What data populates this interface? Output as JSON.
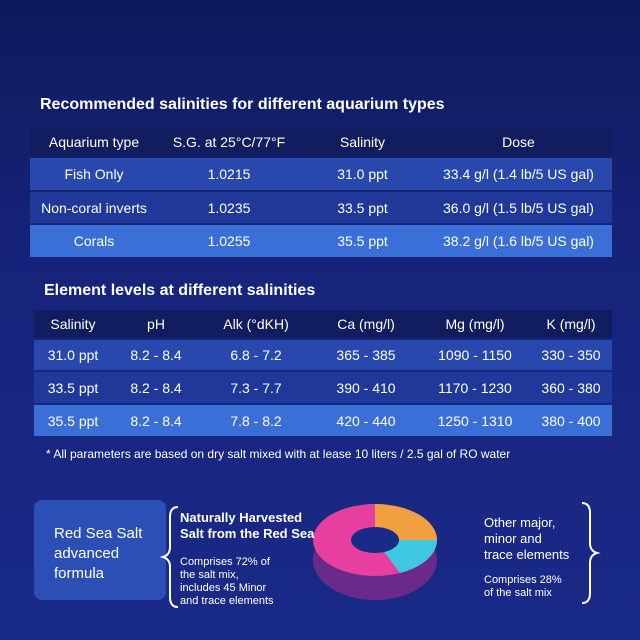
{
  "table1": {
    "title": "Recommended salinities for different aquarium types",
    "header": [
      "Aquarium type",
      "S.G. at 25°C/77°F",
      "Salinity",
      "Dose"
    ],
    "rows": [
      [
        "Fish Only",
        "1.0215",
        "31.0 ppt",
        "33.4 g/l (1.4 lb/5 US gal)"
      ],
      [
        "Non-coral inverts",
        "1.0235",
        "33.5 ppt",
        "36.0 g/l (1.5 lb/5 US gal)"
      ],
      [
        "Corals",
        "1.0255",
        "35.5 ppt",
        "38.2 g/l (1.6 lb/5 US gal)"
      ]
    ]
  },
  "table2": {
    "title": "Element levels at different salinities",
    "header": [
      "Salinity",
      "pH",
      "Alk (°dKH)",
      "Ca (mg/l)",
      "Mg (mg/l)",
      "K (mg/l)"
    ],
    "rows": [
      [
        "31.0 ppt",
        "8.2 - 8.4",
        "6.8 - 7.2",
        "365 - 385",
        "1090 - 1150",
        "330 - 350"
      ],
      [
        "33.5 ppt",
        "8.2 - 8.4",
        "7.3 - 7.7",
        "390 - 410",
        "1170 - 1230",
        "360 - 380"
      ],
      [
        "35.5 ppt",
        "8.2 - 8.4",
        "7.8 - 8.2",
        "420 - 440",
        "1250 - 1310",
        "380 - 400"
      ]
    ]
  },
  "footnote": "* All parameters are based on dry salt mixed with at lease 10 liters / 2.5 gal of RO water",
  "formula": {
    "label": [
      "Red Sea Salt",
      "advanced",
      "formula"
    ],
    "left_heading": [
      "Naturally Harvested",
      "Salt from the Red Sea"
    ],
    "left_detail": [
      "Comprises 72% of",
      "the salt mix,",
      "includes 45 Minor",
      "and trace elements"
    ],
    "right_heading": [
      "Other major,",
      "minor and",
      "trace elements"
    ],
    "right_detail": [
      "Comprises 28%",
      "of the salt mix"
    ]
  }
}
